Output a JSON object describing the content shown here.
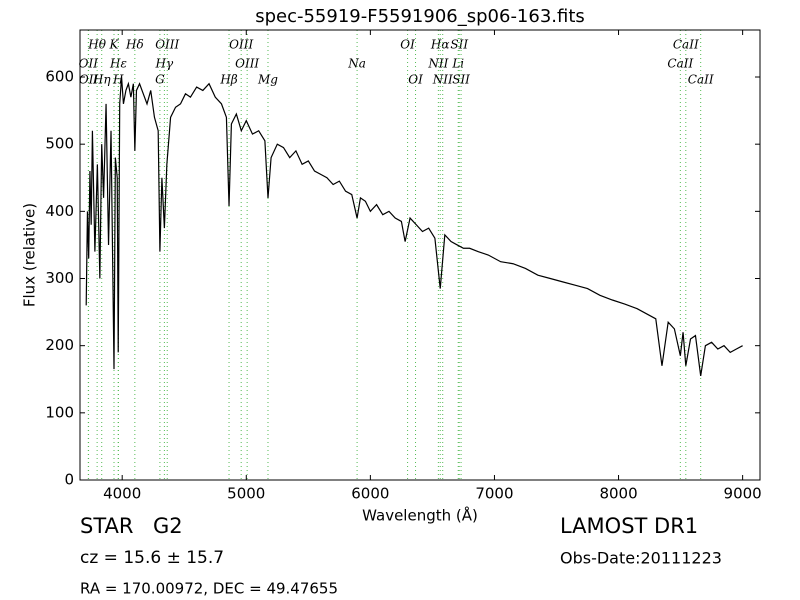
{
  "chart_data": {
    "type": "line",
    "title": "spec-55919-F5591906_sp06-163.fits",
    "x_label": "Wavelength (Å)",
    "y_label": "Flux (relative)",
    "xlim": [
      3660,
      9140
    ],
    "ylim": [
      0,
      670
    ],
    "xticks": [
      4000,
      5000,
      6000,
      7000,
      8000,
      9000
    ],
    "yticks": [
      0,
      100,
      200,
      300,
      400,
      500,
      600
    ],
    "grid": false,
    "series": [
      {
        "color": "#000000",
        "x": [
          3710,
          3720,
          3730,
          3740,
          3750,
          3760,
          3780,
          3800,
          3820,
          3835,
          3850,
          3870,
          3890,
          3910,
          3925,
          3934,
          3945,
          3960,
          3968,
          3980,
          3995,
          4010,
          4030,
          4050,
          4070,
          4090,
          4102,
          4115,
          4140,
          4170,
          4200,
          4230,
          4260,
          4290,
          4304,
          4320,
          4340,
          4360,
          4390,
          4430,
          4470,
          4510,
          4550,
          4600,
          4650,
          4700,
          4750,
          4800,
          4840,
          4861,
          4880,
          4920,
          4960,
          5000,
          5050,
          5100,
          5150,
          5175,
          5200,
          5250,
          5300,
          5350,
          5400,
          5450,
          5500,
          5550,
          5600,
          5650,
          5700,
          5750,
          5800,
          5850,
          5893,
          5920,
          5960,
          6000,
          6050,
          6100,
          6150,
          6200,
          6250,
          6280,
          6320,
          6370,
          6420,
          6470,
          6520,
          6563,
          6600,
          6650,
          6700,
          6750,
          6800,
          6870,
          6950,
          7050,
          7150,
          7250,
          7350,
          7450,
          7550,
          7650,
          7750,
          7850,
          7950,
          8050,
          8150,
          8250,
          8300,
          8350,
          8400,
          8450,
          8498,
          8520,
          8542,
          8580,
          8620,
          8662,
          8700,
          8750,
          8800,
          8850,
          8900,
          8950,
          9000
        ],
        "values": [
          260,
          400,
          330,
          460,
          380,
          520,
          340,
          470,
          300,
          500,
          420,
          560,
          350,
          520,
          300,
          165,
          480,
          450,
          190,
          560,
          600,
          560,
          580,
          590,
          570,
          590,
          490,
          580,
          590,
          575,
          560,
          580,
          540,
          520,
          340,
          450,
          375,
          470,
          540,
          555,
          560,
          575,
          570,
          585,
          580,
          590,
          570,
          560,
          540,
          408,
          530,
          545,
          520,
          535,
          515,
          520,
          505,
          420,
          480,
          500,
          495,
          480,
          490,
          470,
          475,
          460,
          455,
          450,
          440,
          445,
          430,
          425,
          390,
          420,
          415,
          400,
          410,
          395,
          400,
          390,
          385,
          355,
          390,
          380,
          370,
          375,
          360,
          285,
          365,
          355,
          350,
          345,
          345,
          340,
          335,
          325,
          322,
          315,
          305,
          300,
          295,
          290,
          285,
          275,
          268,
          262,
          255,
          245,
          240,
          170,
          235,
          225,
          185,
          220,
          170,
          210,
          215,
          155,
          200,
          205,
          195,
          200,
          190,
          195,
          200
        ]
      }
    ],
    "line_labels": [
      [
        {
          "label": "Hθ",
          "wavelength": 3798
        },
        {
          "label": "K",
          "wavelength": 3934
        },
        {
          "label": "Hδ",
          "wavelength": 4102
        },
        {
          "label": "OIII",
          "wavelength": 4363
        },
        {
          "label": "OIII",
          "wavelength": 4959
        },
        {
          "label": "OI",
          "wavelength": 6300
        },
        {
          "label": "Hα",
          "wavelength": 6563
        },
        {
          "label": "SII",
          "wavelength": 6716
        },
        {
          "label": "CaII",
          "wavelength": 8542
        }
      ],
      [
        {
          "label": "OII",
          "wavelength": 3727
        },
        {
          "label": "Hε",
          "wavelength": 3970
        },
        {
          "label": "Hγ",
          "wavelength": 4340
        },
        {
          "label": "OIII",
          "wavelength": 5007
        },
        {
          "label": "Na",
          "wavelength": 5893
        },
        {
          "label": "NII",
          "wavelength": 6548
        },
        {
          "label": "Li",
          "wavelength": 6708
        },
        {
          "label": "CaII",
          "wavelength": 8498
        }
      ],
      [
        {
          "label": "OII",
          "wavelength": 3729
        },
        {
          "label": "Hη",
          "wavelength": 3835
        },
        {
          "label": "H",
          "wavelength": 3968
        },
        {
          "label": "G",
          "wavelength": 4304
        },
        {
          "label": "Hβ",
          "wavelength": 4861
        },
        {
          "label": "Mg",
          "wavelength": 5175
        },
        {
          "label": "OI",
          "wavelength": 6364
        },
        {
          "label": "NII",
          "wavelength": 6583
        },
        {
          "label": "SII",
          "wavelength": 6731
        },
        {
          "label": "CaII",
          "wavelength": 8662
        }
      ]
    ]
  },
  "info": {
    "object_class": "STAR",
    "subclass": "G2",
    "redshift": "cz = 15.6 ± 15.7",
    "coordinates": "RA = 170.00972, DEC = 49.47655",
    "survey": "LAMOST DR1",
    "obs_date": "Obs-Date:20111223"
  }
}
